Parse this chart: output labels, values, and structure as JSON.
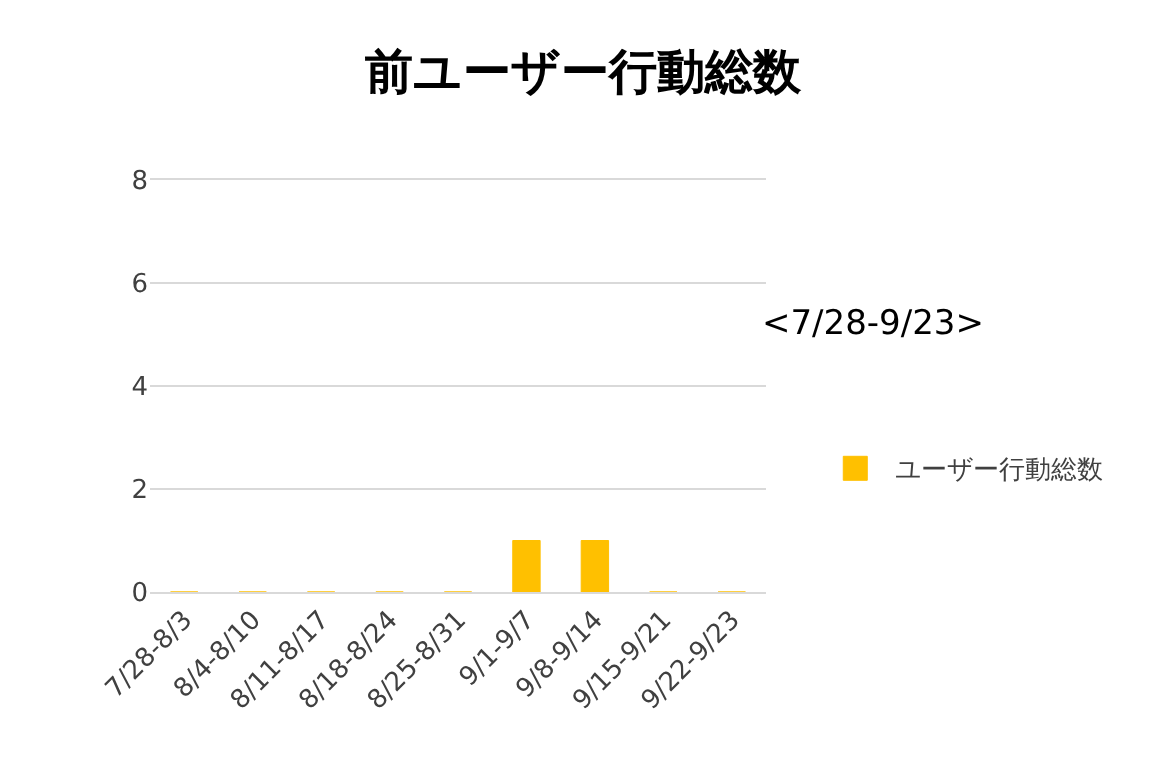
{
  "chart_data": {
    "type": "bar",
    "title": "前ユーザー行動総数",
    "categories": [
      "7/28-8/3",
      "8/4-8/10",
      "8/11-8/17",
      "8/18-8/24",
      "8/25-8/31",
      "9/1-9/7",
      "9/8-9/14",
      "9/15-9/21",
      "9/22-9/23"
    ],
    "series": [
      {
        "name": "ユーザー行動総数",
        "color": "#ffc000",
        "values": [
          0,
          0,
          0,
          0,
          0,
          1,
          1,
          0,
          0
        ]
      }
    ],
    "ylim": [
      0,
      8
    ],
    "yticks": [
      0,
      2,
      4,
      6,
      8
    ],
    "grid": "y",
    "legend": "right",
    "annotations": [
      "<7/28-9/23>"
    ]
  }
}
